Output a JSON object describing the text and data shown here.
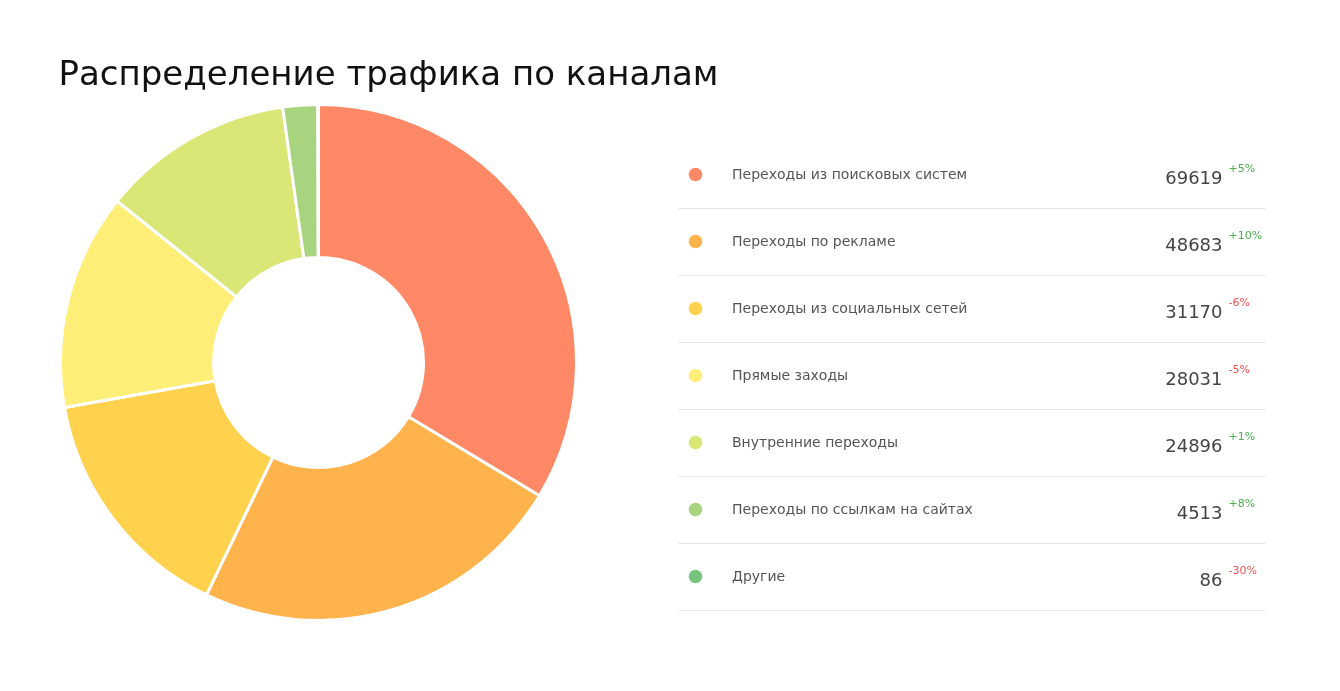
{
  "chart_data": {
    "type": "donut",
    "title": "Распределение трафика по каналам",
    "categories": [
      "Переходы из поисковых систем",
      "Переходы по рекламе",
      "Переходы из социальных сетей",
      "Прямые заходы",
      "Внутренние переходы",
      "Переходы по ссылкам на сайтах",
      "Другие"
    ],
    "values": [
      69619,
      48683,
      31170,
      28031,
      24896,
      4513,
      86
    ],
    "colors": [
      "#ff8966",
      "#ffb34d",
      "#ffd24d",
      "#ffee77",
      "#dae676",
      "#a9d47f",
      "#77c47f"
    ],
    "data_labels": true,
    "annotations": [
      "+5%",
      "+10%",
      "-6%",
      "-5%",
      "+1%",
      "+8%",
      "-30%"
    ],
    "legend": "right"
  }
}
